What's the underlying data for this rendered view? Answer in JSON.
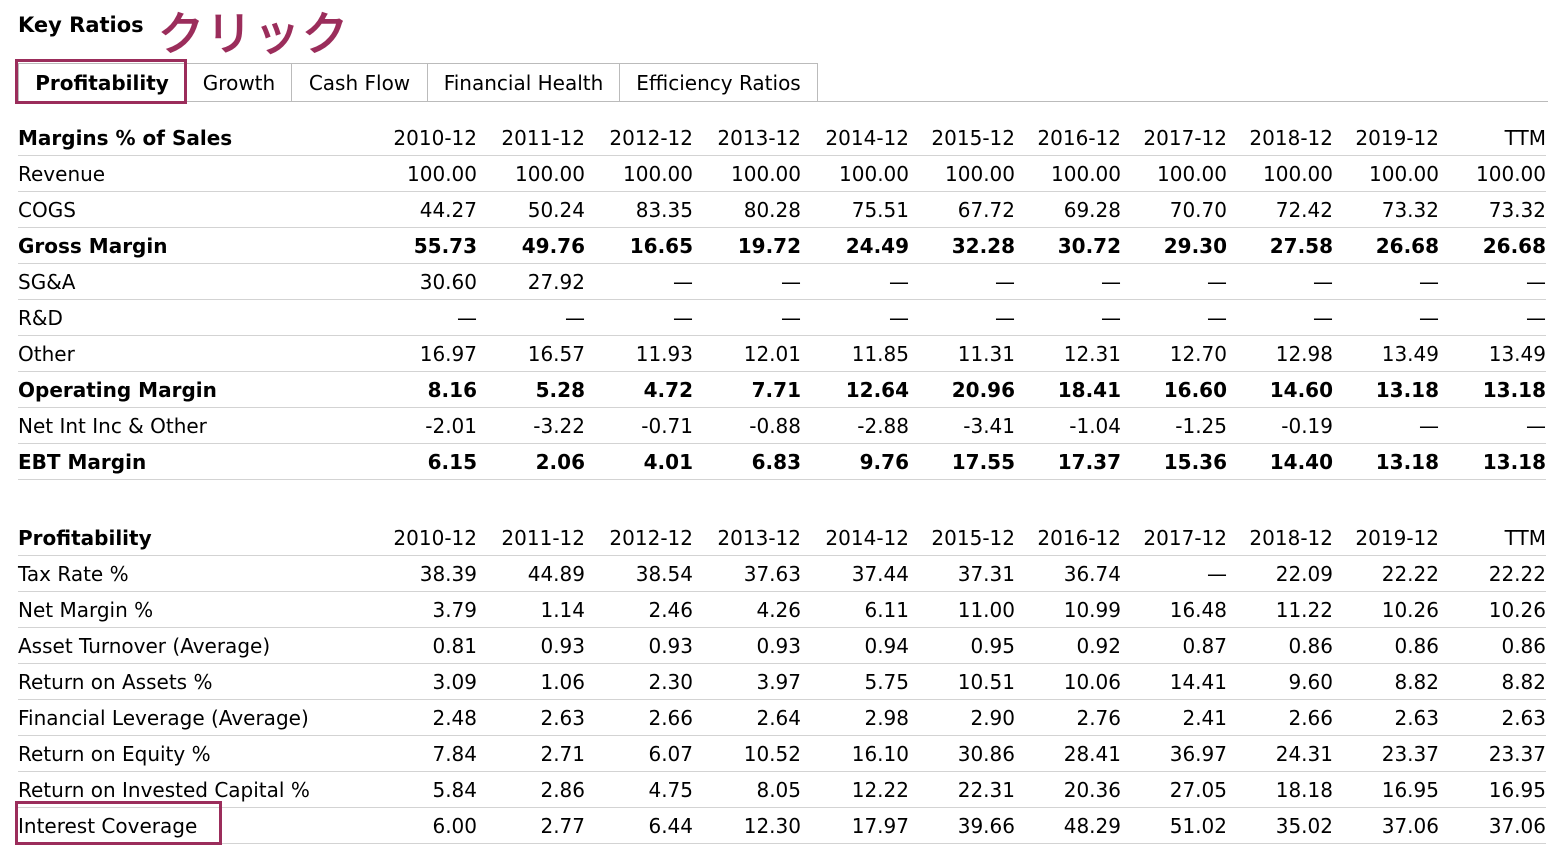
{
  "header": {
    "title": "Key Ratios",
    "annotation": "クリック"
  },
  "colors": {
    "annotation": "#9b2d5b",
    "border": "#bbbbbb",
    "row_divider": "#d3d3d3"
  },
  "tabs": [
    {
      "label": "Profitability",
      "active": true
    },
    {
      "label": "Growth",
      "active": false
    },
    {
      "label": "Cash Flow",
      "active": false
    },
    {
      "label": "Financial Health",
      "active": false
    },
    {
      "label": "Efficiency Ratios",
      "active": false
    }
  ],
  "margins": {
    "title": "Margins % of Sales",
    "columns": [
      "2010-12",
      "2011-12",
      "2012-12",
      "2013-12",
      "2014-12",
      "2015-12",
      "2016-12",
      "2017-12",
      "2018-12",
      "2019-12",
      "TTM"
    ],
    "rows": [
      {
        "label": "Revenue",
        "bold": false,
        "values": [
          "100.00",
          "100.00",
          "100.00",
          "100.00",
          "100.00",
          "100.00",
          "100.00",
          "100.00",
          "100.00",
          "100.00",
          "100.00"
        ]
      },
      {
        "label": "COGS",
        "bold": false,
        "values": [
          "44.27",
          "50.24",
          "83.35",
          "80.28",
          "75.51",
          "67.72",
          "69.28",
          "70.70",
          "72.42",
          "73.32",
          "73.32"
        ]
      },
      {
        "label": "Gross Margin",
        "bold": true,
        "values": [
          "55.73",
          "49.76",
          "16.65",
          "19.72",
          "24.49",
          "32.28",
          "30.72",
          "29.30",
          "27.58",
          "26.68",
          "26.68"
        ]
      },
      {
        "label": "SG&A",
        "bold": false,
        "values": [
          "30.60",
          "27.92",
          "—",
          "—",
          "—",
          "—",
          "—",
          "—",
          "—",
          "—",
          "—"
        ]
      },
      {
        "label": "R&D",
        "bold": false,
        "values": [
          "—",
          "—",
          "—",
          "—",
          "—",
          "—",
          "—",
          "—",
          "—",
          "—",
          "—"
        ]
      },
      {
        "label": "Other",
        "bold": false,
        "values": [
          "16.97",
          "16.57",
          "11.93",
          "12.01",
          "11.85",
          "11.31",
          "12.31",
          "12.70",
          "12.98",
          "13.49",
          "13.49"
        ]
      },
      {
        "label": "Operating Margin",
        "bold": true,
        "values": [
          "8.16",
          "5.28",
          "4.72",
          "7.71",
          "12.64",
          "20.96",
          "18.41",
          "16.60",
          "14.60",
          "13.18",
          "13.18"
        ]
      },
      {
        "label": "Net Int Inc & Other",
        "bold": false,
        "values": [
          "-2.01",
          "-3.22",
          "-0.71",
          "-0.88",
          "-2.88",
          "-3.41",
          "-1.04",
          "-1.25",
          "-0.19",
          "—",
          "—"
        ]
      },
      {
        "label": "EBT Margin",
        "bold": true,
        "values": [
          "6.15",
          "2.06",
          "4.01",
          "6.83",
          "9.76",
          "17.55",
          "17.37",
          "15.36",
          "14.40",
          "13.18",
          "13.18"
        ]
      }
    ]
  },
  "profitability": {
    "title": "Profitability",
    "columns": [
      "2010-12",
      "2011-12",
      "2012-12",
      "2013-12",
      "2014-12",
      "2015-12",
      "2016-12",
      "2017-12",
      "2018-12",
      "2019-12",
      "TTM"
    ],
    "rows": [
      {
        "label": "Tax Rate %",
        "bold": false,
        "values": [
          "38.39",
          "44.89",
          "38.54",
          "37.63",
          "37.44",
          "37.31",
          "36.74",
          "—",
          "22.09",
          "22.22",
          "22.22"
        ]
      },
      {
        "label": "Net Margin %",
        "bold": false,
        "values": [
          "3.79",
          "1.14",
          "2.46",
          "4.26",
          "6.11",
          "11.00",
          "10.99",
          "16.48",
          "11.22",
          "10.26",
          "10.26"
        ]
      },
      {
        "label": "Asset Turnover (Average)",
        "bold": false,
        "values": [
          "0.81",
          "0.93",
          "0.93",
          "0.93",
          "0.94",
          "0.95",
          "0.92",
          "0.87",
          "0.86",
          "0.86",
          "0.86"
        ]
      },
      {
        "label": "Return on Assets %",
        "bold": false,
        "values": [
          "3.09",
          "1.06",
          "2.30",
          "3.97",
          "5.75",
          "10.51",
          "10.06",
          "14.41",
          "9.60",
          "8.82",
          "8.82"
        ]
      },
      {
        "label": "Financial Leverage (Average)",
        "bold": false,
        "values": [
          "2.48",
          "2.63",
          "2.66",
          "2.64",
          "2.98",
          "2.90",
          "2.76",
          "2.41",
          "2.66",
          "2.63",
          "2.63"
        ]
      },
      {
        "label": "Return on Equity %",
        "bold": false,
        "values": [
          "7.84",
          "2.71",
          "6.07",
          "10.52",
          "16.10",
          "30.86",
          "28.41",
          "36.97",
          "24.31",
          "23.37",
          "23.37"
        ]
      },
      {
        "label": "Return on Invested Capital %",
        "bold": false,
        "values": [
          "5.84",
          "2.86",
          "4.75",
          "8.05",
          "12.22",
          "22.31",
          "20.36",
          "27.05",
          "18.18",
          "16.95",
          "16.95"
        ]
      },
      {
        "label": "Interest Coverage",
        "bold": false,
        "values": [
          "6.00",
          "2.77",
          "6.44",
          "12.30",
          "17.97",
          "39.66",
          "48.29",
          "51.02",
          "35.02",
          "37.06",
          "37.06"
        ]
      }
    ]
  }
}
